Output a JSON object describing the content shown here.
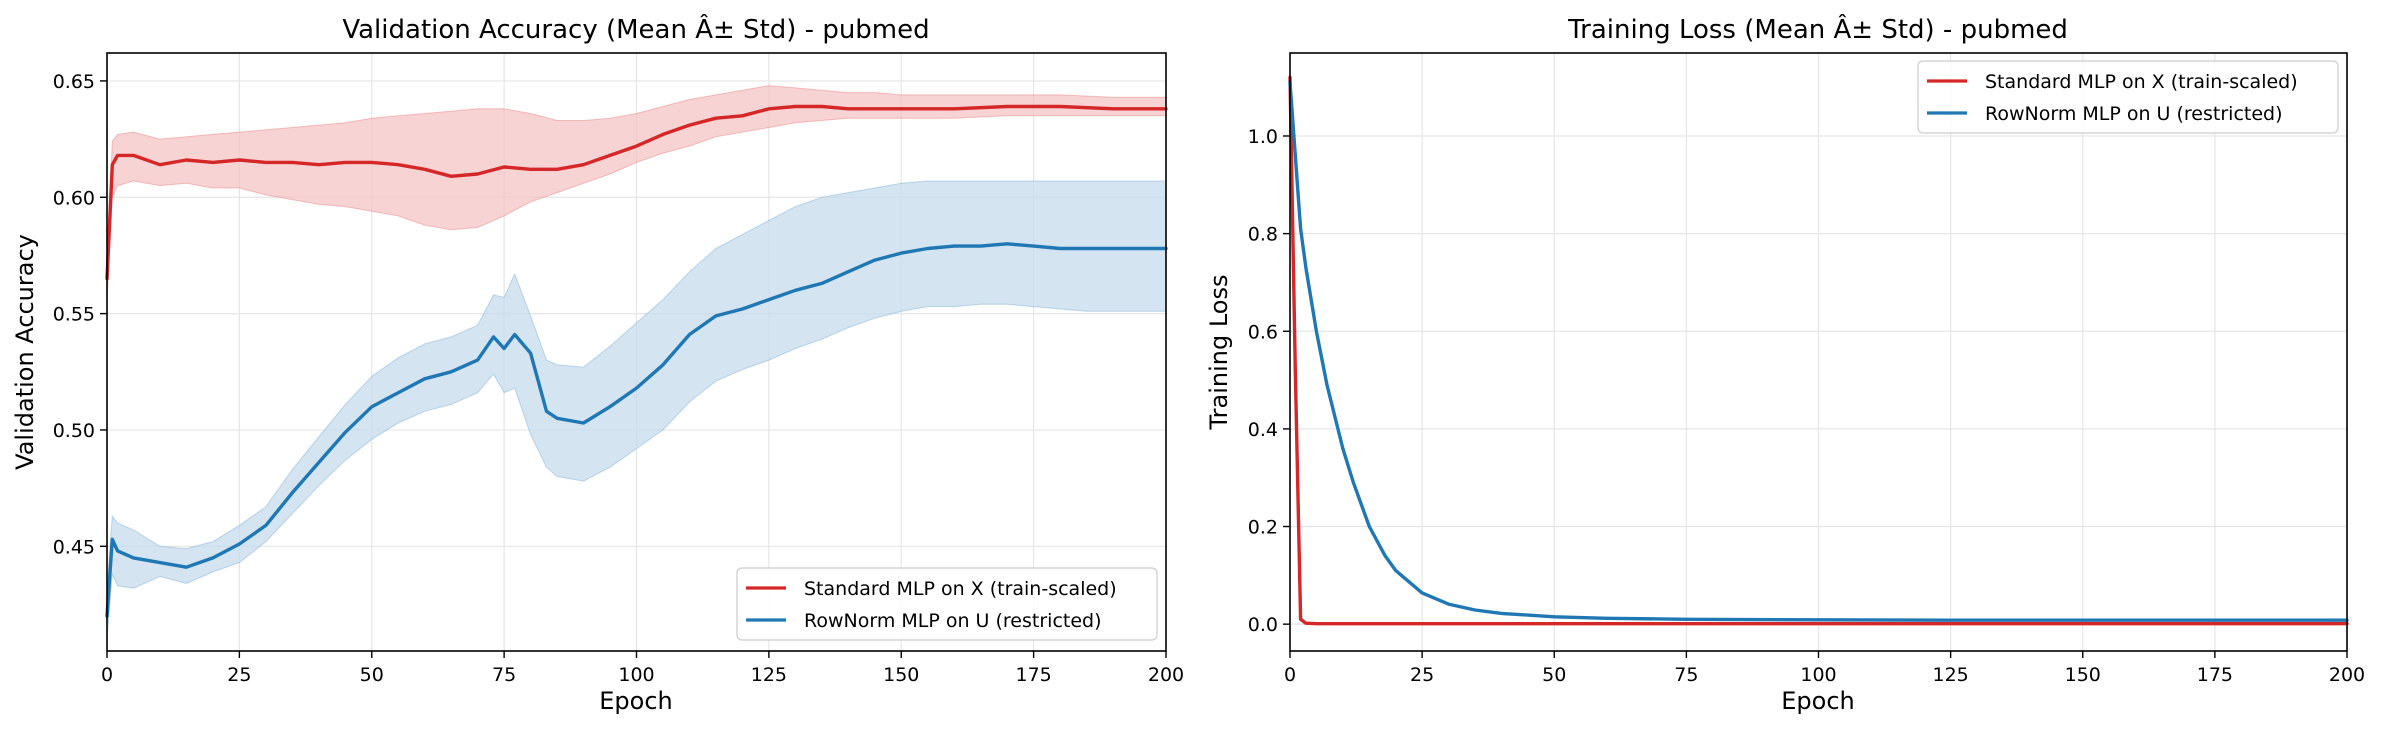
{
  "figure": {
    "panels": [
      {
        "title": "Validation Accuracy (Mean Â± Std) - pubmed",
        "xlabel": "Epoch",
        "ylabel": "Validation Accuracy",
        "xticks": [
          "0",
          "25",
          "50",
          "75",
          "100",
          "125",
          "150",
          "175",
          "200"
        ],
        "yticks": [
          "0.45",
          "0.50",
          "0.55",
          "0.60",
          "0.65"
        ],
        "legend": [
          "Standard MLP on X (train-scaled)",
          "RowNorm MLP on U (restricted)"
        ]
      },
      {
        "title": "Training Loss (Mean Â± Std) - pubmed",
        "xlabel": "Epoch",
        "ylabel": "Training Loss",
        "xticks": [
          "0",
          "25",
          "50",
          "75",
          "100",
          "125",
          "150",
          "175",
          "200"
        ],
        "yticks": [
          "0.0",
          "0.2",
          "0.4",
          "0.6",
          "0.8",
          "1.0"
        ],
        "legend": [
          "Standard MLP on X (train-scaled)",
          "RowNorm MLP on U (restricted)"
        ]
      }
    ]
  },
  "colors": {
    "red": "#d62728",
    "blue": "#1f77b4",
    "red_band": "#f4c4c5",
    "blue_band": "#c5dbec"
  },
  "chart_data": [
    {
      "type": "line",
      "title": "Validation Accuracy (Mean Â± Std) - pubmed",
      "xlabel": "Epoch",
      "ylabel": "Validation Accuracy",
      "xlim": [
        0,
        200
      ],
      "ylim": [
        0.405,
        0.662
      ],
      "grid": true,
      "legend_position": "bottom-right",
      "series": [
        {
          "name": "Standard MLP on X (train-scaled)",
          "color": "#d62728",
          "x": [
            0,
            1,
            2,
            5,
            10,
            15,
            20,
            25,
            30,
            35,
            40,
            45,
            50,
            55,
            60,
            65,
            70,
            75,
            80,
            85,
            90,
            95,
            100,
            105,
            110,
            115,
            120,
            125,
            130,
            135,
            140,
            145,
            150,
            160,
            170,
            180,
            190,
            200
          ],
          "mean": [
            0.565,
            0.614,
            0.618,
            0.618,
            0.614,
            0.616,
            0.615,
            0.616,
            0.615,
            0.615,
            0.614,
            0.615,
            0.615,
            0.614,
            0.612,
            0.609,
            0.61,
            0.613,
            0.612,
            0.612,
            0.614,
            0.618,
            0.622,
            0.627,
            0.631,
            0.634,
            0.635,
            0.638,
            0.639,
            0.639,
            0.638,
            0.638,
            0.638,
            0.638,
            0.639,
            0.639,
            0.638,
            0.638
          ],
          "lower": [
            0.555,
            0.6,
            0.605,
            0.607,
            0.605,
            0.606,
            0.604,
            0.604,
            0.601,
            0.599,
            0.597,
            0.596,
            0.594,
            0.592,
            0.588,
            0.586,
            0.587,
            0.592,
            0.598,
            0.602,
            0.606,
            0.61,
            0.615,
            0.619,
            0.622,
            0.626,
            0.628,
            0.63,
            0.632,
            0.633,
            0.634,
            0.634,
            0.634,
            0.634,
            0.635,
            0.635,
            0.635,
            0.635
          ],
          "upper": [
            0.572,
            0.624,
            0.627,
            0.628,
            0.625,
            0.626,
            0.627,
            0.628,
            0.629,
            0.63,
            0.631,
            0.632,
            0.634,
            0.635,
            0.636,
            0.637,
            0.638,
            0.638,
            0.636,
            0.633,
            0.633,
            0.634,
            0.636,
            0.639,
            0.642,
            0.644,
            0.646,
            0.648,
            0.647,
            0.646,
            0.645,
            0.645,
            0.644,
            0.644,
            0.644,
            0.644,
            0.643,
            0.643
          ]
        },
        {
          "name": "RowNorm MLP on U (restricted)",
          "color": "#1f77b4",
          "x": [
            0,
            1,
            2,
            5,
            10,
            15,
            20,
            25,
            30,
            35,
            40,
            45,
            50,
            55,
            60,
            65,
            70,
            73,
            75,
            77,
            80,
            83,
            85,
            90,
            95,
            100,
            105,
            110,
            115,
            120,
            125,
            130,
            135,
            140,
            145,
            150,
            155,
            160,
            165,
            170,
            175,
            180,
            185,
            190,
            200
          ],
          "mean": [
            0.42,
            0.453,
            0.448,
            0.445,
            0.443,
            0.441,
            0.445,
            0.451,
            0.459,
            0.473,
            0.486,
            0.499,
            0.51,
            0.516,
            0.522,
            0.525,
            0.53,
            0.54,
            0.535,
            0.541,
            0.533,
            0.508,
            0.505,
            0.503,
            0.51,
            0.518,
            0.528,
            0.541,
            0.549,
            0.552,
            0.556,
            0.56,
            0.563,
            0.568,
            0.573,
            0.576,
            0.578,
            0.579,
            0.579,
            0.58,
            0.579,
            0.578,
            0.578,
            0.578,
            0.578
          ],
          "lower": [
            0.41,
            0.438,
            0.433,
            0.432,
            0.437,
            0.434,
            0.439,
            0.443,
            0.452,
            0.464,
            0.476,
            0.487,
            0.496,
            0.503,
            0.508,
            0.511,
            0.516,
            0.524,
            0.516,
            0.518,
            0.498,
            0.484,
            0.48,
            0.478,
            0.484,
            0.492,
            0.5,
            0.512,
            0.521,
            0.526,
            0.53,
            0.535,
            0.539,
            0.544,
            0.548,
            0.551,
            0.553,
            0.553,
            0.554,
            0.554,
            0.553,
            0.552,
            0.551,
            0.551,
            0.551
          ],
          "upper": [
            0.432,
            0.463,
            0.46,
            0.457,
            0.45,
            0.449,
            0.452,
            0.459,
            0.467,
            0.483,
            0.497,
            0.511,
            0.523,
            0.531,
            0.537,
            0.54,
            0.545,
            0.558,
            0.557,
            0.567,
            0.549,
            0.53,
            0.528,
            0.527,
            0.536,
            0.546,
            0.556,
            0.568,
            0.578,
            0.584,
            0.59,
            0.596,
            0.6,
            0.602,
            0.604,
            0.606,
            0.607,
            0.607,
            0.607,
            0.607,
            0.607,
            0.607,
            0.607,
            0.607,
            0.607
          ]
        }
      ]
    },
    {
      "type": "line",
      "title": "Training Loss (Mean Â± Std) - pubmed",
      "xlabel": "Epoch",
      "ylabel": "Training Loss",
      "xlim": [
        0,
        200
      ],
      "ylim": [
        -0.055,
        1.17
      ],
      "grid": true,
      "legend_position": "top-right",
      "series": [
        {
          "name": "Standard MLP on X (train-scaled)",
          "color": "#d62728",
          "x": [
            0,
            1,
            2,
            3,
            5,
            10,
            50,
            100,
            150,
            200
          ],
          "mean": [
            1.12,
            0.52,
            0.01,
            0.002,
            0.001,
            0.001,
            0.001,
            0.001,
            0.001,
            0.001
          ]
        },
        {
          "name": "RowNorm MLP on U (restricted)",
          "color": "#1f77b4",
          "x": [
            0,
            1,
            2,
            3,
            5,
            7,
            10,
            12,
            15,
            18,
            20,
            25,
            30,
            35,
            40,
            50,
            60,
            75,
            100,
            125,
            150,
            175,
            200
          ],
          "mean": [
            1.11,
            0.96,
            0.81,
            0.73,
            0.6,
            0.49,
            0.36,
            0.29,
            0.2,
            0.14,
            0.11,
            0.064,
            0.041,
            0.029,
            0.022,
            0.015,
            0.012,
            0.01,
            0.009,
            0.008,
            0.008,
            0.008,
            0.008
          ]
        }
      ]
    }
  ]
}
